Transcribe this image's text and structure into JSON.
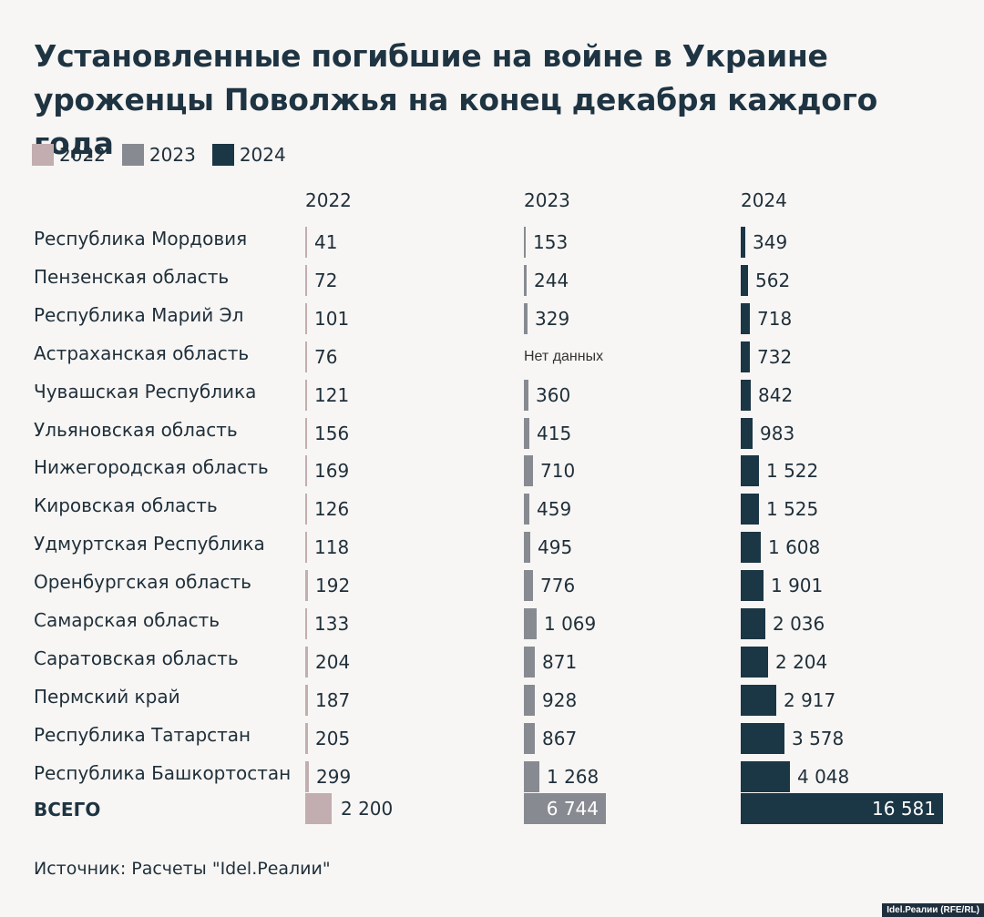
{
  "title_lines": [
    "Установленные погибшие на войне в Украине",
    "уроженцы Поволжья на конец декабря каждого года"
  ],
  "colors": {
    "2022": "#c2adb1",
    "2023": "#878b91",
    "2024": "#1b3645"
  },
  "source": "Источник: Расчеты \"Idel.Реалии\"",
  "credit": "Idel.Реалии (RFE/RL)",
  "chart_data": {
    "type": "bar",
    "orientation": "horizontal",
    "layout": "small-multiples",
    "title": "Установленные погибшие на войне в Украине уроженцы Поволжья на конец декабря каждого года",
    "legend": [
      "2022",
      "2023",
      "2024"
    ],
    "legend_placement": "top-left",
    "no_data_label": "Нет данных",
    "categories": [
      "Республика Мордовия",
      "Пензенская область",
      "Республика Марий Эл",
      "Астраханская область",
      "Чувашская Республика",
      "Ульяновская область",
      "Нижегородская область",
      "Кировская область",
      "Удмуртская Республика",
      "Оренбургская область",
      "Самарская область",
      "Саратовская область",
      "Пермский край",
      "Республика Татарстан",
      "Республика Башкортостан"
    ],
    "series": [
      {
        "name": "2022",
        "values": [
          41,
          72,
          101,
          76,
          121,
          156,
          169,
          126,
          118,
          192,
          133,
          204,
          187,
          205,
          299
        ],
        "labels": [
          "41",
          "72",
          "101",
          "76",
          "121",
          "156",
          "169",
          "126",
          "118",
          "192",
          "133",
          "204",
          "187",
          "205",
          "299"
        ]
      },
      {
        "name": "2023",
        "values": [
          153,
          244,
          329,
          null,
          360,
          415,
          710,
          459,
          495,
          776,
          1069,
          871,
          928,
          867,
          1268
        ],
        "labels": [
          "153",
          "244",
          "329",
          "",
          "360",
          "415",
          "710",
          "459",
          "495",
          "776",
          "1 069",
          "871",
          "928",
          "867",
          "1 268"
        ]
      },
      {
        "name": "2024",
        "values": [
          349,
          562,
          718,
          732,
          842,
          983,
          1522,
          1525,
          1608,
          1901,
          2036,
          2204,
          2917,
          3578,
          4048
        ],
        "labels": [
          "349",
          "562",
          "718",
          "732",
          "842",
          "983",
          "1 522",
          "1 525",
          "1 608",
          "1 901",
          "2 036",
          "2 204",
          "2 917",
          "3 578",
          "4 048"
        ]
      }
    ],
    "total": {
      "label": "ВСЕГО",
      "values": [
        2200,
        6744,
        16581
      ],
      "labels": [
        "2 200",
        "6 744",
        "16 581"
      ]
    }
  }
}
